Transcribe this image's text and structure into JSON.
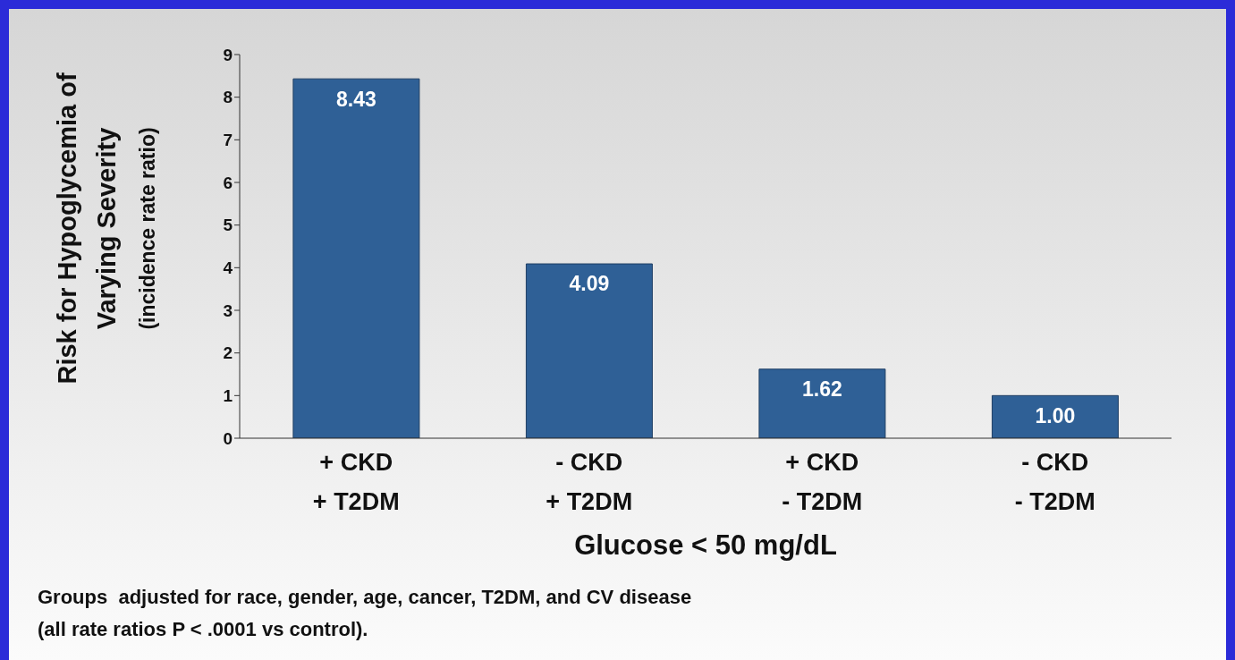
{
  "chart_data": {
    "type": "bar",
    "xlabel": "Glucose < 50 mg/dL",
    "ylabel": "Risk for Hypoglycemia of\nVarying Severity\n(incidence rate ratio)",
    "categories": [
      "+ CKD\n+ T2DM",
      "- CKD\n+ T2DM",
      "+ CKD\n- T2DM",
      "- CKD\n- T2DM"
    ],
    "values": [
      8.43,
      4.09,
      1.62,
      1.0
    ],
    "value_labels": [
      "8.43",
      "4.09",
      "1.62",
      "1.00"
    ],
    "color": "#2f6096",
    "ylim": [
      0,
      9
    ],
    "yticks": [
      0,
      1,
      2,
      3,
      4,
      5,
      6,
      7,
      8,
      9
    ],
    "annotations": [
      "Groups  adjusted for race, gender, age, cancer, T2DM, and CV disease",
      "(all rate ratios P < .0001 vs control)."
    ]
  }
}
